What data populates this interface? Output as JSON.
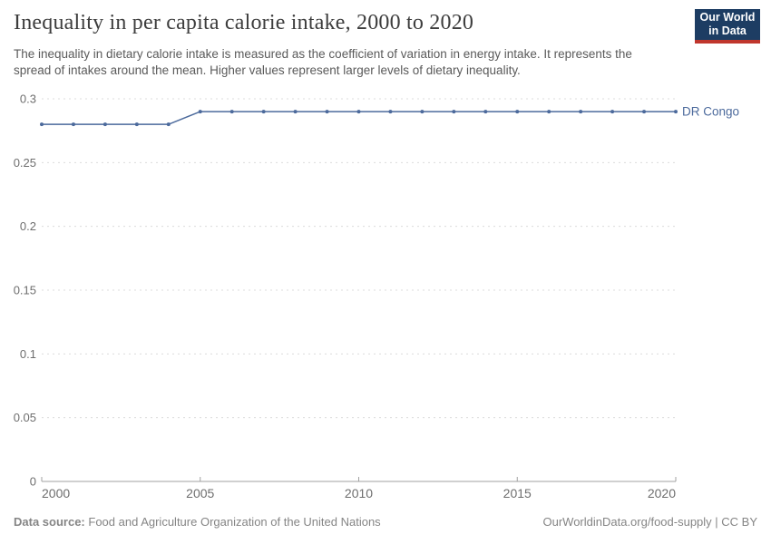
{
  "header": {
    "title": "Inequality in per capita calorie intake, 2000 to 2020",
    "subtitle": "The inequality in dietary calorie intake is measured as the coefficient of variation in energy intake. It represents the spread of intakes around the mean. Higher values represent larger levels of dietary inequality.",
    "logo": {
      "line1": "Our World",
      "line2": "in Data",
      "bg_color": "#1d3d63",
      "stripe_color": "#c0362d"
    }
  },
  "chart_data": {
    "type": "line",
    "title": "Inequality in per capita calorie intake, 2000 to 2020",
    "subtitle": "The inequality in dietary calorie intake is measured as the coefficient of variation in energy intake. It represents the spread of intakes around the mean. Higher values represent larger levels of dietary inequality.",
    "xlabel": "",
    "ylabel": "",
    "xlim": [
      2000,
      2020
    ],
    "ylim": [
      0,
      0.3
    ],
    "x_ticks": [
      2000,
      2005,
      2010,
      2015,
      2020
    ],
    "x_tick_labels": [
      "2000",
      "2005",
      "2010",
      "2015",
      "2020"
    ],
    "y_ticks": [
      0,
      0.05,
      0.1,
      0.15,
      0.2,
      0.25,
      0.3
    ],
    "y_tick_labels": [
      "0",
      "0.05",
      "0.1",
      "0.15",
      "0.2",
      "0.25",
      "0.3"
    ],
    "grid": "horizontal-dashed",
    "legend_position": "end-of-line-label",
    "grid_color": "#dcdcdc",
    "axis_color": "#a1a1a1",
    "tick_color": "#6e6e6e",
    "series": [
      {
        "name": "DR Congo",
        "color": "#4C6A9C",
        "x": [
          2000,
          2001,
          2002,
          2003,
          2004,
          2005,
          2006,
          2007,
          2008,
          2009,
          2010,
          2011,
          2012,
          2013,
          2014,
          2015,
          2016,
          2017,
          2018,
          2019,
          2020
        ],
        "values": [
          0.28,
          0.28,
          0.28,
          0.28,
          0.28,
          0.29,
          0.29,
          0.29,
          0.29,
          0.29,
          0.29,
          0.29,
          0.29,
          0.29,
          0.29,
          0.29,
          0.29,
          0.29,
          0.29,
          0.29,
          0.29
        ]
      }
    ]
  },
  "footer": {
    "source_label": "Data source:",
    "source_text": "Food and Agriculture Organization of the United Nations",
    "attribution": "OurWorldinData.org/food-supply | CC BY"
  }
}
